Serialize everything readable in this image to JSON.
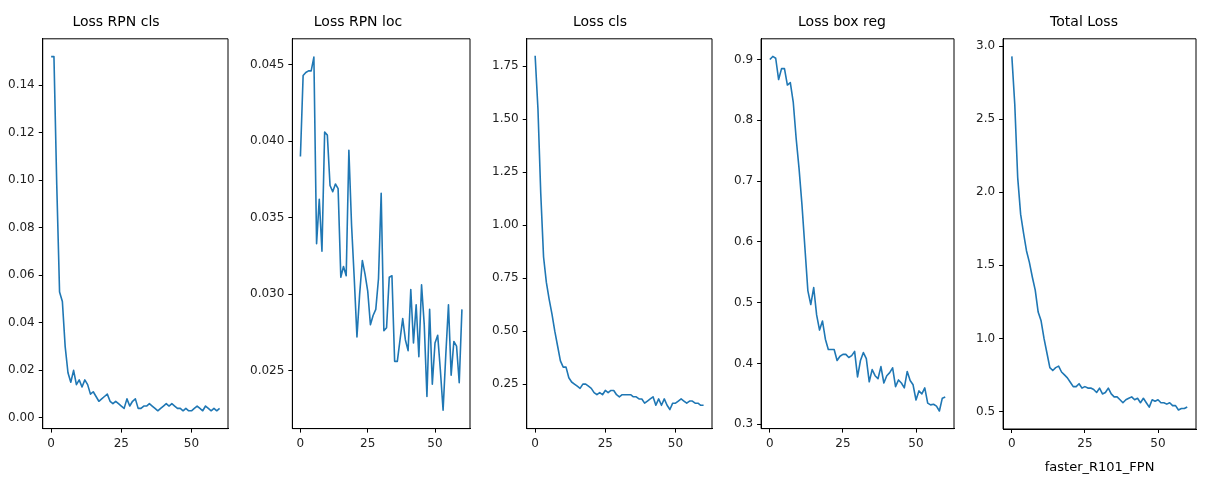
{
  "chart_data": [
    {
      "type": "line",
      "title": "Loss RPN cls",
      "x": [
        0,
        1,
        2,
        3,
        4,
        5,
        6,
        7,
        8,
        9,
        10,
        11,
        12,
        13,
        14,
        15,
        16,
        17,
        18,
        19,
        20,
        21,
        22,
        23,
        24,
        25,
        26,
        27,
        28,
        29,
        30,
        31,
        32,
        33,
        34,
        35,
        36,
        37,
        38,
        39,
        40,
        41,
        42,
        43,
        44,
        45,
        46,
        47,
        48,
        49,
        50,
        51,
        52,
        53,
        54,
        55,
        56,
        57,
        58,
        59,
        60
      ],
      "series": [
        {
          "color": "#1f77b4",
          "values": [
            0.152,
            0.152,
            0.098,
            0.053,
            0.049,
            0.03,
            0.019,
            0.015,
            0.02,
            0.014,
            0.016,
            0.013,
            0.016,
            0.014,
            0.01,
            0.011,
            0.009,
            0.007,
            0.008,
            0.009,
            0.01,
            0.007,
            0.006,
            0.007,
            0.006,
            0.005,
            0.004,
            0.008,
            0.005,
            0.007,
            0.008,
            0.004,
            0.004,
            0.005,
            0.005,
            0.006,
            0.005,
            0.004,
            0.003,
            0.004,
            0.005,
            0.006,
            0.005,
            0.006,
            0.005,
            0.004,
            0.004,
            0.003,
            0.004,
            0.003,
            0.003,
            0.004,
            0.005,
            0.004,
            0.003,
            0.005,
            0.004,
            0.003,
            0.004,
            0.003,
            0.004
          ]
        }
      ],
      "xlim": [
        -3,
        63
      ],
      "xticks": [
        0,
        25,
        50
      ],
      "ylim": [
        -0.0045,
        0.1595
      ],
      "yticks": [
        {
          "value": 0,
          "label": "0.00"
        },
        {
          "value": 0.02,
          "label": "0.02"
        },
        {
          "value": 0.04,
          "label": "0.04"
        },
        {
          "value": 0.06,
          "label": "0.06"
        },
        {
          "value": 0.08,
          "label": "0.08"
        },
        {
          "value": 0.1,
          "label": "0.10"
        },
        {
          "value": 0.12,
          "label": "0.12"
        },
        {
          "value": 0.14,
          "label": "0.14"
        }
      ],
      "grid": false,
      "legend": false
    },
    {
      "type": "line",
      "title": "Loss RPN loc",
      "x": [
        0,
        1,
        2,
        3,
        4,
        5,
        6,
        7,
        8,
        9,
        10,
        11,
        12,
        13,
        14,
        15,
        16,
        17,
        18,
        19,
        20,
        21,
        22,
        23,
        24,
        25,
        26,
        27,
        28,
        29,
        30,
        31,
        32,
        33,
        34,
        35,
        36,
        37,
        38,
        39,
        40,
        41,
        42,
        43,
        44,
        45,
        46,
        47,
        48,
        49,
        50,
        51,
        52,
        53,
        54,
        55,
        56,
        57,
        58,
        59,
        60
      ],
      "series": [
        {
          "color": "#1f77b4",
          "values": [
            0.039,
            0.0443,
            0.0445,
            0.0446,
            0.0446,
            0.0455,
            0.0333,
            0.0362,
            0.0328,
            0.0406,
            0.0404,
            0.0371,
            0.0367,
            0.0372,
            0.0369,
            0.0311,
            0.0318,
            0.0312,
            0.0394,
            0.0345,
            0.031,
            0.0272,
            0.03,
            0.0322,
            0.0313,
            0.0302,
            0.028,
            0.0286,
            0.029,
            0.031,
            0.0366,
            0.0276,
            0.0278,
            0.0311,
            0.0312,
            0.0256,
            0.0256,
            0.027,
            0.0284,
            0.027,
            0.0263,
            0.0303,
            0.0268,
            0.0293,
            0.0259,
            0.0306,
            0.028,
            0.0233,
            0.029,
            0.0241,
            0.0268,
            0.0273,
            0.025,
            0.0224,
            0.026,
            0.0293,
            0.0247,
            0.0269,
            0.0266,
            0.0242,
            0.029
          ]
        }
      ],
      "xlim": [
        -3,
        63
      ],
      "xticks": [
        0,
        25,
        50
      ],
      "ylim": [
        0.0212,
        0.0467
      ],
      "yticks": [
        0.025,
        {
          "value": 0.03,
          "label": "0.030"
        },
        0.035,
        {
          "value": 0.04,
          "label": "0.040"
        },
        0.045
      ],
      "grid": false,
      "legend": false
    },
    {
      "type": "line",
      "title": "Loss cls",
      "x": [
        0,
        1,
        2,
        3,
        4,
        5,
        6,
        7,
        8,
        9,
        10,
        11,
        12,
        13,
        14,
        15,
        16,
        17,
        18,
        19,
        20,
        21,
        22,
        23,
        24,
        25,
        26,
        27,
        28,
        29,
        30,
        31,
        32,
        33,
        34,
        35,
        36,
        37,
        38,
        39,
        40,
        41,
        42,
        43,
        44,
        45,
        46,
        47,
        48,
        49,
        50,
        51,
        52,
        53,
        54,
        55,
        56,
        57,
        58,
        59,
        60
      ],
      "series": [
        {
          "color": "#1f77b4",
          "values": [
            1.8,
            1.55,
            1.15,
            0.85,
            0.73,
            0.65,
            0.58,
            0.5,
            0.43,
            0.36,
            0.33,
            0.33,
            0.28,
            0.26,
            0.25,
            0.24,
            0.23,
            0.25,
            0.25,
            0.24,
            0.23,
            0.21,
            0.2,
            0.21,
            0.2,
            0.22,
            0.21,
            0.22,
            0.22,
            0.2,
            0.19,
            0.2,
            0.2,
            0.2,
            0.2,
            0.19,
            0.19,
            0.18,
            0.18,
            0.16,
            0.17,
            0.18,
            0.19,
            0.15,
            0.18,
            0.15,
            0.18,
            0.15,
            0.13,
            0.16,
            0.16,
            0.17,
            0.18,
            0.17,
            0.16,
            0.17,
            0.17,
            0.16,
            0.16,
            0.15,
            0.15
          ]
        }
      ],
      "xlim": [
        -3,
        63
      ],
      "xticks": [
        0,
        25,
        50
      ],
      "ylim": [
        0.04,
        1.88
      ],
      "yticks": [
        0.25,
        {
          "value": 0.5,
          "label": "0.50"
        },
        0.75,
        {
          "value": 1,
          "label": "1.00"
        },
        1.25,
        {
          "value": 1.5,
          "label": "1.50"
        },
        1.75
      ],
      "grid": false,
      "legend": false
    },
    {
      "type": "line",
      "title": "Loss box reg",
      "x": [
        0,
        1,
        2,
        3,
        4,
        5,
        6,
        7,
        8,
        9,
        10,
        11,
        12,
        13,
        14,
        15,
        16,
        17,
        18,
        19,
        20,
        21,
        22,
        23,
        24,
        25,
        26,
        27,
        28,
        29,
        30,
        31,
        32,
        33,
        34,
        35,
        36,
        37,
        38,
        39,
        40,
        41,
        42,
        43,
        44,
        45,
        46,
        47,
        48,
        49,
        50,
        51,
        52,
        53,
        54,
        55,
        56,
        57,
        58,
        59,
        60
      ],
      "series": [
        {
          "color": "#1f77b4",
          "values": [
            0.9,
            0.905,
            0.902,
            0.867,
            0.885,
            0.885,
            0.858,
            0.862,
            0.83,
            0.77,
            0.72,
            0.66,
            0.59,
            0.52,
            0.497,
            0.525,
            0.48,
            0.455,
            0.47,
            0.44,
            0.423,
            0.423,
            0.423,
            0.405,
            0.412,
            0.415,
            0.415,
            0.41,
            0.413,
            0.42,
            0.378,
            0.405,
            0.418,
            0.408,
            0.37,
            0.39,
            0.38,
            0.375,
            0.395,
            0.368,
            0.38,
            0.385,
            0.393,
            0.362,
            0.373,
            0.368,
            0.36,
            0.387,
            0.372,
            0.365,
            0.34,
            0.355,
            0.35,
            0.36,
            0.335,
            0.332,
            0.333,
            0.33,
            0.322,
            0.343,
            0.345
          ]
        }
      ],
      "xlim": [
        -3,
        63
      ],
      "xticks": [
        0,
        25,
        50
      ],
      "ylim": [
        0.293,
        0.934
      ],
      "yticks": [
        0.3,
        0.4,
        0.5,
        0.6,
        0.7,
        0.8,
        0.9
      ],
      "grid": false,
      "legend": false
    },
    {
      "type": "line",
      "title": "Total Loss",
      "xlabel": "faster_R101_FPN",
      "x": [
        0,
        1,
        2,
        3,
        4,
        5,
        6,
        7,
        8,
        9,
        10,
        11,
        12,
        13,
        14,
        15,
        16,
        17,
        18,
        19,
        20,
        21,
        22,
        23,
        24,
        25,
        26,
        27,
        28,
        29,
        30,
        31,
        32,
        33,
        34,
        35,
        36,
        37,
        38,
        39,
        40,
        41,
        42,
        43,
        44,
        45,
        46,
        47,
        48,
        49,
        50,
        51,
        52,
        53,
        54,
        55,
        56,
        57,
        58,
        59,
        60
      ],
      "series": [
        {
          "color": "#1f77b4",
          "values": [
            2.93,
            2.6,
            2.1,
            1.85,
            1.72,
            1.6,
            1.52,
            1.42,
            1.33,
            1.18,
            1.12,
            1.0,
            0.9,
            0.8,
            0.78,
            0.8,
            0.81,
            0.77,
            0.75,
            0.73,
            0.7,
            0.67,
            0.67,
            0.69,
            0.66,
            0.67,
            0.66,
            0.66,
            0.65,
            0.63,
            0.66,
            0.62,
            0.63,
            0.66,
            0.62,
            0.6,
            0.6,
            0.58,
            0.56,
            0.58,
            0.59,
            0.6,
            0.58,
            0.59,
            0.56,
            0.59,
            0.56,
            0.53,
            0.58,
            0.57,
            0.58,
            0.56,
            0.56,
            0.55,
            0.56,
            0.54,
            0.54,
            0.51,
            0.52,
            0.52,
            0.53
          ]
        }
      ],
      "xlim": [
        -3,
        63
      ],
      "xticks": [
        0,
        25,
        50
      ],
      "ylim": [
        0.38,
        3.05
      ],
      "yticks": [
        0.5,
        {
          "value": 1,
          "label": "1.0"
        },
        1.5,
        {
          "value": 2,
          "label": "2.0"
        },
        2.5,
        {
          "value": 3,
          "label": "3.0"
        }
      ],
      "grid": false,
      "legend": false
    }
  ]
}
